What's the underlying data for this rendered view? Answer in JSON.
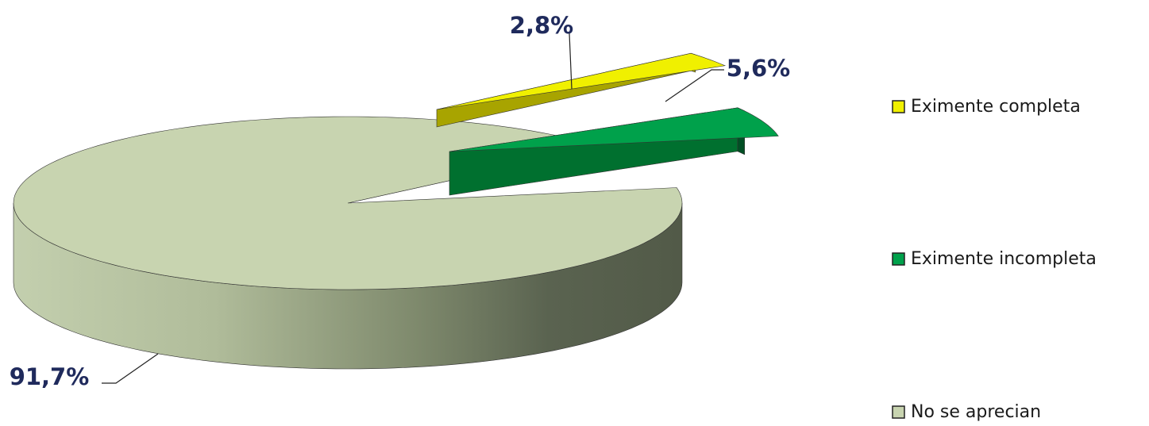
{
  "chart_data": {
    "type": "pie",
    "title": "",
    "categories": [
      "Eximente completa",
      "Eximente incompleta",
      "No se aprecian"
    ],
    "values": [
      2.8,
      5.6,
      91.7
    ],
    "data_labels": [
      "2,8%",
      "5,6%",
      "91,7%"
    ],
    "colors": [
      "#f0f000",
      "#00a14b",
      "#c8d4b0"
    ],
    "legend": {
      "placement": "right",
      "entries": [
        "Eximente completa",
        "Eximente incompleta",
        "No se aprecian"
      ]
    },
    "label_color": "#1f2a5c",
    "exploded": [
      "Eximente completa",
      "Eximente incompleta"
    ]
  }
}
